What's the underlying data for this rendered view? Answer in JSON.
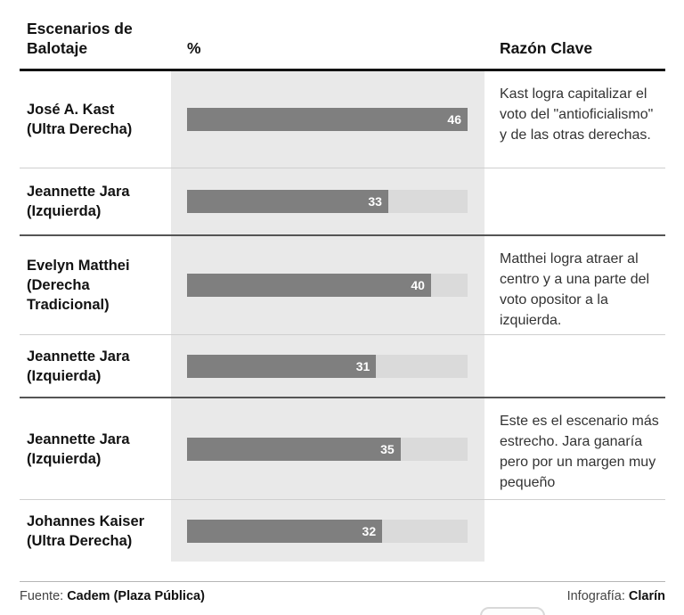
{
  "header": {
    "scenarios_label": "Escenarios de Balotaje",
    "percent_label": "%",
    "reason_label": "Razón Clave"
  },
  "chart_data": {
    "type": "bar",
    "orientation": "horizontal",
    "title": "Escenarios de Balotaje",
    "unit": "%",
    "value_axis_max": 46,
    "scenarios": [
      {
        "reason": "Kast logra capitalizar el voto del \"antioficialismo\" y de las otras derechas.",
        "candidates": [
          {
            "name": "José A. Kast",
            "party": "(Ultra Derecha)",
            "value": 46
          },
          {
            "name": "Jeannette Jara",
            "party": "(Izquierda)",
            "value": 33
          }
        ]
      },
      {
        "reason": "Matthei logra atraer al centro y a una parte del voto opositor a la izquierda.",
        "candidates": [
          {
            "name": "Evelyn Matthei",
            "party": "(Derecha Tradicional)",
            "value": 40
          },
          {
            "name": "Jeannette Jara",
            "party": "(Izquierda)",
            "value": 31
          }
        ]
      },
      {
        "reason": "Este es el escenario más estrecho. Jara ganaría pero por un margen muy pequeño",
        "candidates": [
          {
            "name": "Jeannette Jara",
            "party": "(Izquierda)",
            "value": 35
          },
          {
            "name": "Johannes Kaiser",
            "party": "(Ultra Derecha)",
            "value": 32
          }
        ]
      }
    ]
  },
  "footer": {
    "source_label": "Fuente:",
    "source": "Cadem (Plaza Pública)",
    "credit_label": "Infografía:",
    "credit": "Clarín"
  },
  "colors": {
    "bar": "#7f7f7f",
    "band_bg": "#e9e9e9",
    "bar_track": "#dadada",
    "divider_dark": "#555555",
    "divider_light": "#cfcfcf",
    "header_rule": "#121212",
    "footer_rule": "#b5b5b5",
    "text_primary": "#121212",
    "text_secondary": "#333333",
    "value_text": "#ffffff"
  }
}
